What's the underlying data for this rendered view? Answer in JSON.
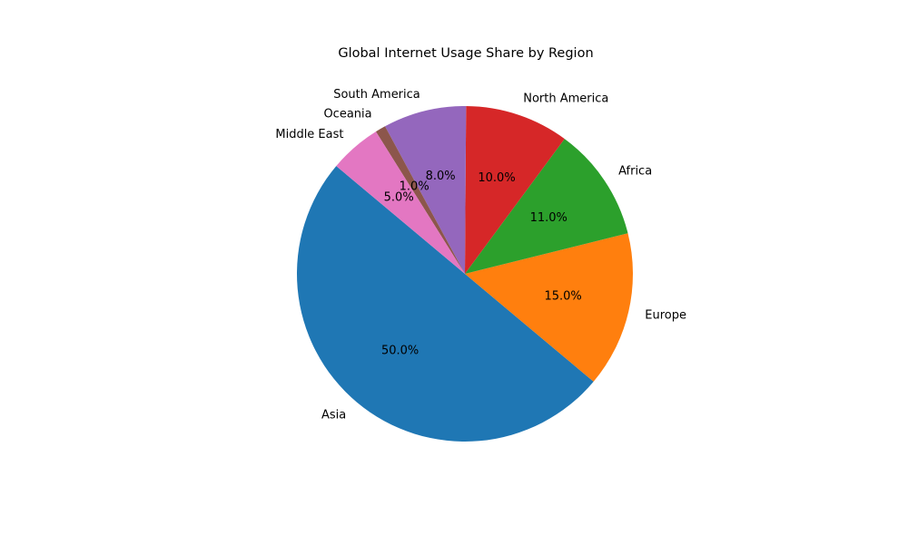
{
  "chart_data": {
    "type": "pie",
    "title": "Global Internet Usage Share by Region",
    "categories": [
      "Asia",
      "Europe",
      "Africa",
      "North America",
      "South America",
      "Oceania",
      "Middle East"
    ],
    "values": [
      50.0,
      15.0,
      11.0,
      10.0,
      8.0,
      1.0,
      5.0
    ],
    "percent_labels": [
      "50.0%",
      "15.0%",
      "11.0%",
      "10.0%",
      "8.0%",
      "1.0%",
      "5.0%"
    ],
    "colors": [
      "#1f77b4",
      "#ff7f0e",
      "#2ca02c",
      "#d62728",
      "#9467bd",
      "#8c564b",
      "#e377c2"
    ],
    "start_angle": 140,
    "direction": "counterclockwise",
    "legend": false
  }
}
